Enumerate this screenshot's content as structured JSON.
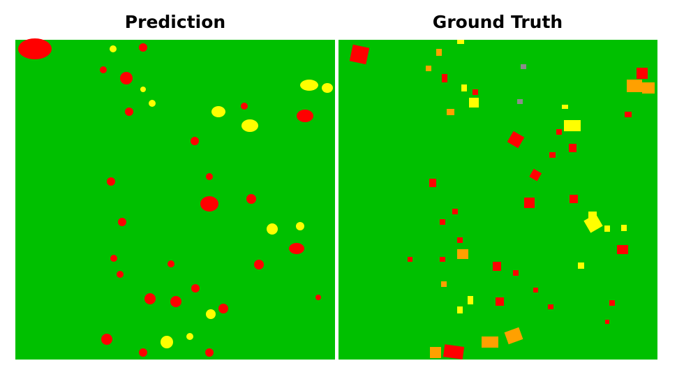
{
  "panels": [
    {
      "title": "Prediction"
    },
    {
      "title": "Ground Truth"
    }
  ]
}
